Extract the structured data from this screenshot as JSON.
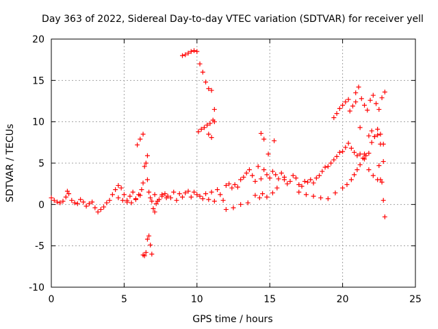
{
  "chart_data": {
    "type": "scatter",
    "title": "Day 363 of 2022, Sidereal Day-to-day VTEC variation (SDTVAR) for receiver yell",
    "xlabel": "GPS time / hours",
    "ylabel": "SDTVAR / TECUs",
    "xlim": [
      0,
      25
    ],
    "ylim": [
      -10,
      20
    ],
    "xticks": [
      0,
      5,
      10,
      15,
      20,
      25
    ],
    "yticks": [
      -10,
      -5,
      0,
      5,
      10,
      15,
      20
    ],
    "xtick_labels": [
      "0",
      "5",
      "10",
      "15",
      "20",
      "25"
    ],
    "ytick_labels": [
      "-10",
      "-5",
      "0",
      "5",
      "10",
      "15",
      "20"
    ],
    "grid": true,
    "marker": "+",
    "color": "#ff0000",
    "series": [
      {
        "name": "SDTVAR (receiver yell)",
        "x": [
          0.0,
          0.2,
          0.4,
          0.6,
          0.8,
          1.0,
          1.1,
          1.2,
          1.4,
          1.6,
          1.8,
          2.0,
          2.2,
          2.4,
          2.6,
          2.8,
          3.0,
          3.2,
          3.4,
          3.6,
          3.8,
          4.0,
          4.2,
          4.4,
          4.6,
          4.8,
          5.0,
          5.2,
          5.4,
          5.6,
          5.8,
          6.0,
          6.2,
          6.3,
          6.4,
          6.5,
          6.6,
          6.7,
          6.8,
          6.9,
          7.0,
          7.1,
          7.2,
          7.4,
          7.6,
          7.8,
          8.0,
          8.2,
          8.4,
          8.6,
          8.8,
          9.0,
          9.2,
          9.4,
          9.6,
          9.8,
          10.0,
          10.2,
          10.4,
          10.6,
          10.8,
          11.0,
          11.2,
          11.4,
          11.6,
          11.8,
          12.0,
          12.2,
          12.4,
          12.6,
          12.8,
          13.0,
          13.2,
          13.4,
          13.6,
          13.8,
          14.0,
          14.2,
          14.4,
          14.6,
          14.8,
          15.0,
          15.2,
          15.4,
          15.6,
          15.8,
          16.0,
          16.2,
          16.4,
          16.6,
          16.8,
          17.0,
          17.2,
          17.4,
          17.6,
          17.8,
          18.0,
          18.2,
          18.4,
          18.6,
          18.8,
          19.0,
          19.2,
          19.4,
          19.6,
          19.8,
          20.0,
          20.2,
          20.4,
          20.6,
          20.8,
          21.0,
          21.2,
          21.4,
          21.6,
          21.8,
          22.0,
          22.2,
          22.4,
          22.6,
          22.8,
          6.3,
          6.4,
          6.5,
          6.6,
          6.7,
          6.8,
          6.9,
          5.9,
          6.1,
          6.3,
          6.6,
          9.0,
          9.2,
          9.4,
          9.6,
          9.8,
          10.0,
          10.2,
          10.4,
          10.6,
          10.8,
          11.0,
          10.1,
          10.3,
          10.5,
          10.7,
          10.9,
          11.1,
          11.2,
          10.8,
          11.0,
          11.2,
          4.6,
          4.9,
          5.2,
          5.5,
          5.8,
          6.1,
          12.0,
          12.5,
          13.0,
          13.5,
          14.0,
          14.3,
          14.5,
          14.8,
          15.2,
          15.5,
          16.0,
          17.0,
          17.5,
          18.0,
          18.5,
          19.0,
          19.5,
          20.0,
          20.3,
          20.6,
          20.8,
          21.0,
          21.2,
          21.5,
          21.8,
          22.0,
          22.2,
          22.4,
          22.6,
          22.8,
          20.5,
          20.7,
          20.9,
          21.2,
          21.5,
          21.8,
          22.1,
          22.4,
          22.7,
          20.9,
          21.1,
          21.3,
          21.5,
          21.7,
          21.9,
          22.1,
          22.3,
          22.5,
          22.7,
          22.9,
          22.5,
          22.6,
          22.8,
          22.9,
          19.4,
          19.6,
          19.8,
          20.0,
          20.2,
          20.4,
          14.4,
          14.6,
          14.9,
          15.3,
          7.1,
          7.3,
          7.6,
          7.9
        ],
        "y": [
          0.8,
          0.5,
          0.3,
          0.2,
          0.4,
          0.9,
          1.6,
          1.3,
          0.5,
          0.2,
          0.1,
          0.6,
          0.3,
          -0.2,
          0.1,
          0.3,
          -0.4,
          -0.9,
          -0.6,
          -0.3,
          0.2,
          0.5,
          1.2,
          1.8,
          2.3,
          2.0,
          1.2,
          0.5,
          1.0,
          1.5,
          0.6,
          1.2,
          1.8,
          2.6,
          4.6,
          5.0,
          3.0,
          1.5,
          0.8,
          0.4,
          -0.5,
          -0.9,
          0.1,
          0.6,
          1.2,
          1.3,
          1.0,
          0.8,
          1.5,
          0.5,
          1.3,
          0.9,
          1.4,
          1.6,
          0.9,
          1.5,
          1.2,
          1.0,
          0.7,
          1.3,
          0.6,
          1.5,
          0.4,
          1.8,
          1.2,
          0.5,
          2.3,
          2.5,
          2.0,
          2.4,
          2.1,
          3.0,
          3.3,
          3.8,
          4.2,
          3.5,
          2.8,
          4.6,
          3.1,
          4.2,
          3.6,
          3.2,
          4.0,
          3.6,
          3.1,
          3.8,
          3.3,
          2.5,
          2.8,
          3.5,
          3.2,
          2.4,
          2.2,
          2.8,
          2.7,
          3.0,
          2.6,
          3.2,
          3.5,
          4.0,
          4.5,
          4.6,
          5.0,
          5.4,
          5.8,
          6.3,
          6.4,
          6.9,
          7.4,
          6.8,
          6.3,
          5.9,
          6.1,
          5.6,
          5.9,
          8.3,
          8.9,
          8.2,
          9.1,
          8.5,
          7.3,
          -6.1,
          -6.2,
          -5.8,
          -4.2,
          -3.8,
          -4.9,
          -6.0,
          7.2,
          7.9,
          8.5,
          5.9,
          18.0,
          18.1,
          18.3,
          18.5,
          18.6,
          18.5,
          17.0,
          16.0,
          14.8,
          14.0,
          13.8,
          8.8,
          9.1,
          9.3,
          9.6,
          9.8,
          10.2,
          10.0,
          8.5,
          8.1,
          11.5,
          0.8,
          0.5,
          0.3,
          0.2,
          0.7,
          1.1,
          -0.6,
          -0.4,
          0.0,
          0.2,
          1.1,
          0.8,
          1.3,
          0.9,
          1.4,
          2.0,
          3.0,
          1.5,
          1.2,
          1.0,
          0.8,
          0.7,
          1.4,
          2.0,
          2.4,
          3.0,
          3.6,
          4.2,
          4.8,
          5.5,
          6.2,
          7.5,
          8.2,
          8.4,
          7.3,
          5.2,
          11.3,
          11.9,
          12.4,
          9.3,
          6.1,
          4.2,
          3.5,
          3.0,
          2.7,
          13.5,
          14.2,
          12.8,
          12.0,
          11.4,
          12.6,
          13.2,
          12.2,
          11.5,
          12.9,
          13.6,
          4.7,
          3.0,
          0.5,
          -1.5,
          10.5,
          11.0,
          11.6,
          12.0,
          12.4,
          12.7,
          8.6,
          7.9,
          6.1,
          7.7,
          1.2,
          0.4,
          1.0,
          0.8
        ]
      }
    ]
  }
}
